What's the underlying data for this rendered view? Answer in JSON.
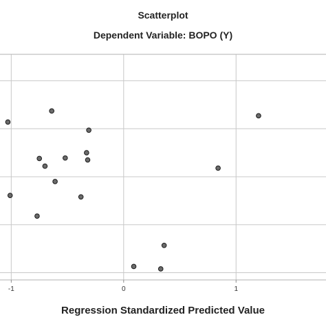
{
  "chart_data": {
    "type": "scatter",
    "title": "Scatterplot",
    "subtitle": "Dependent Variable: BOPO (Y)",
    "xlabel": "Regression Standardized Predicted Value",
    "ylabel": "",
    "xlim": [
      -1.1,
      1.8
    ],
    "ylim": [
      -2.15,
      2.55
    ],
    "x_ticks": [
      -1,
      0,
      1
    ],
    "x_tick_labels": [
      "-1",
      "0",
      "1"
    ],
    "y_gridlines": [
      -2,
      -1,
      0,
      1,
      2
    ],
    "grid": true,
    "point_color": "#6b6b6b",
    "points": [
      {
        "x": -1.03,
        "y": 1.14
      },
      {
        "x": -0.64,
        "y": 1.37
      },
      {
        "x": 1.2,
        "y": 1.27
      },
      {
        "x": -0.31,
        "y": 0.97
      },
      {
        "x": -0.33,
        "y": 0.5
      },
      {
        "x": -0.52,
        "y": 0.39
      },
      {
        "x": -0.32,
        "y": 0.35
      },
      {
        "x": -0.75,
        "y": 0.38
      },
      {
        "x": -0.7,
        "y": 0.22
      },
      {
        "x": 0.84,
        "y": 0.18
      },
      {
        "x": -0.61,
        "y": -0.1
      },
      {
        "x": -1.01,
        "y": -0.39
      },
      {
        "x": -0.38,
        "y": -0.42
      },
      {
        "x": -0.77,
        "y": -0.82
      },
      {
        "x": 0.36,
        "y": -1.43
      },
      {
        "x": 0.09,
        "y": -1.87
      },
      {
        "x": 0.33,
        "y": -1.92
      }
    ]
  }
}
